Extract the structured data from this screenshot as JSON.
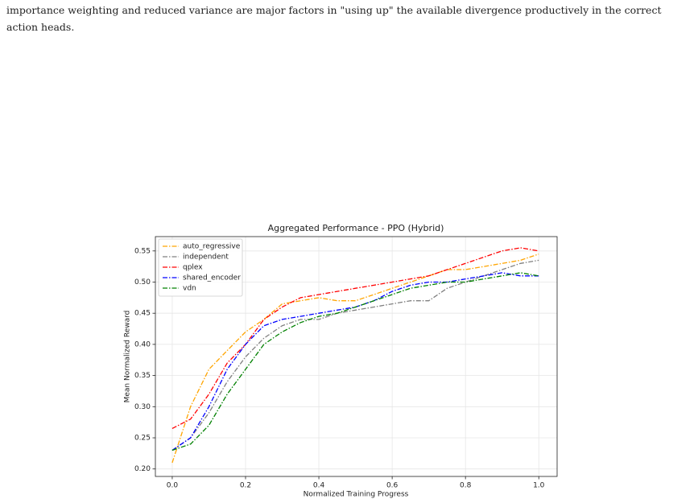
{
  "text": {
    "paragraph": "importance weighting and reduced variance are major factors in \"using up\" the available divergence productively in the correct action heads."
  },
  "chart_data": {
    "type": "line",
    "title": "Aggregated Performance - PPO (Hybrid)",
    "x_label": "Normalized Training Progress",
    "y_label": "Mean Normalized Reward",
    "x": [
      0,
      0.05,
      0.1,
      0.15,
      0.2,
      0.25,
      0.3,
      0.35,
      0.4,
      0.45,
      0.5,
      0.55,
      0.6,
      0.65,
      0.7,
      0.75,
      0.8,
      0.85,
      0.9,
      0.95,
      1.0
    ],
    "series": [
      {
        "name": "auto_regressive",
        "color": "#ffa500",
        "values": [
          0.21,
          0.3,
          0.36,
          0.39,
          0.42,
          0.44,
          0.465,
          0.47,
          0.475,
          0.47,
          0.47,
          0.48,
          0.49,
          0.5,
          0.51,
          0.52,
          0.52,
          0.525,
          0.53,
          0.535,
          0.545
        ]
      },
      {
        "name": "independent",
        "color": "#808080",
        "values": [
          0.23,
          0.25,
          0.29,
          0.34,
          0.38,
          0.41,
          0.43,
          0.44,
          0.44,
          0.45,
          0.455,
          0.46,
          0.465,
          0.47,
          0.47,
          0.49,
          0.5,
          0.51,
          0.52,
          0.53,
          0.535
        ]
      },
      {
        "name": "qplex",
        "color": "#ff0000",
        "values": [
          0.265,
          0.28,
          0.32,
          0.37,
          0.4,
          0.44,
          0.46,
          0.475,
          0.48,
          0.485,
          0.49,
          0.495,
          0.5,
          0.505,
          0.51,
          0.52,
          0.53,
          0.54,
          0.55,
          0.555,
          0.55
        ]
      },
      {
        "name": "shared_encoder",
        "color": "#0000ff",
        "values": [
          0.23,
          0.25,
          0.3,
          0.36,
          0.4,
          0.43,
          0.44,
          0.445,
          0.45,
          0.455,
          0.46,
          0.47,
          0.485,
          0.495,
          0.5,
          0.5,
          0.505,
          0.51,
          0.515,
          0.51,
          0.51
        ]
      },
      {
        "name": "vdn",
        "color": "#008000",
        "values": [
          0.23,
          0.24,
          0.27,
          0.32,
          0.36,
          0.4,
          0.42,
          0.435,
          0.445,
          0.45,
          0.46,
          0.47,
          0.48,
          0.49,
          0.495,
          0.5,
          0.5,
          0.505,
          0.51,
          0.515,
          0.51
        ]
      }
    ],
    "xlim": [
      -0.046,
      1.05
    ],
    "xticks": [
      {
        "value": 0,
        "label": "0.0"
      },
      0.2,
      0.4,
      0.6,
      0.8,
      {
        "value": 1,
        "label": "1.0"
      }
    ],
    "ylim": [
      0.188,
      0.573
    ],
    "yticks": [
      {
        "value": 0.2,
        "label": "0.20"
      },
      0.25,
      {
        "value": 0.3,
        "label": "0.30"
      },
      0.35,
      {
        "value": 0.4,
        "label": "0.40"
      },
      0.45,
      {
        "value": 0.5,
        "label": "0.50"
      },
      0.55
    ],
    "grid": true,
    "legend": "upper-left"
  }
}
